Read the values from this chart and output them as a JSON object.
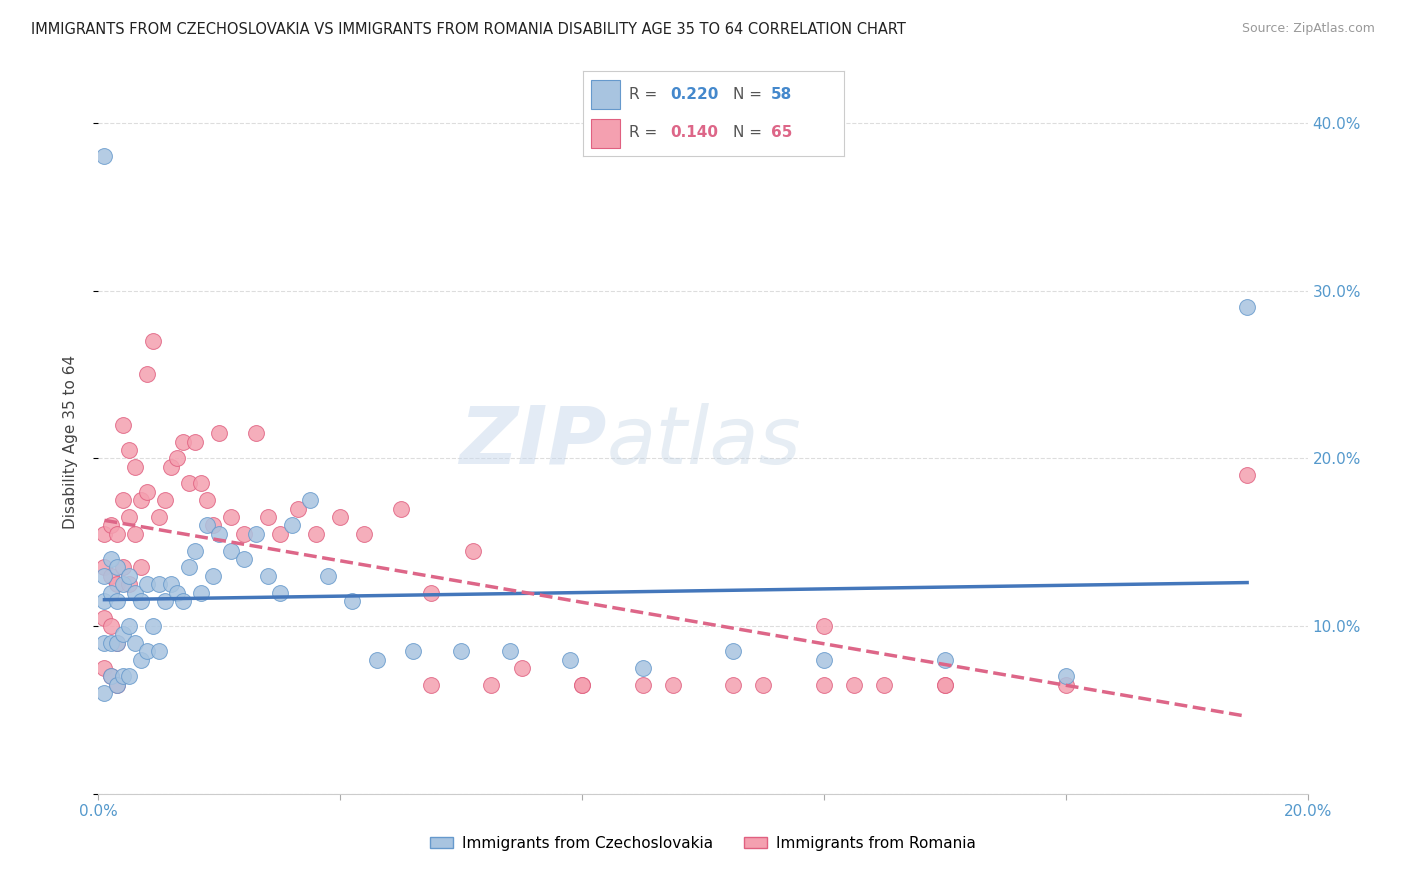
{
  "title": "IMMIGRANTS FROM CZECHOSLOVAKIA VS IMMIGRANTS FROM ROMANIA DISABILITY AGE 35 TO 64 CORRELATION CHART",
  "source": "Source: ZipAtlas.com",
  "ylabel_label": "Disability Age 35 to 64",
  "x_min": 0.0,
  "x_max": 0.2,
  "y_min": 0.0,
  "y_max": 0.42,
  "x_ticks": [
    0.0,
    0.04,
    0.08,
    0.12,
    0.16,
    0.2
  ],
  "x_tick_labels": [
    "0.0%",
    "",
    "",
    "",
    "",
    "20.0%"
  ],
  "y_ticks": [
    0.0,
    0.1,
    0.2,
    0.3,
    0.4
  ],
  "y_tick_labels": [
    "",
    "10.0%",
    "20.0%",
    "30.0%",
    "40.0%"
  ],
  "series1_color": "#a8c4e0",
  "series1_edge": "#6699cc",
  "series2_color": "#f4a0b0",
  "series2_edge": "#e06080",
  "series1_label": "Immigrants from Czechoslovakia",
  "series2_label": "Immigrants from Romania",
  "series1_R": "0.220",
  "series1_N": "58",
  "series2_R": "0.140",
  "series2_N": "65",
  "line1_color": "#4477bb",
  "line2_color": "#dd6688",
  "line2_style": "--",
  "watermark_zip": "ZIP",
  "watermark_atlas": "atlas",
  "background_color": "#ffffff",
  "grid_color": "#dddddd",
  "tick_color": "#5599cc",
  "legend_R_color1": "#4488cc",
  "legend_R_color2": "#dd6688",
  "legend_N_color1": "#4488cc",
  "legend_N_color2": "#dd6688",
  "series1_x": [
    0.001,
    0.001,
    0.001,
    0.001,
    0.001,
    0.002,
    0.002,
    0.002,
    0.002,
    0.003,
    0.003,
    0.003,
    0.003,
    0.004,
    0.004,
    0.004,
    0.005,
    0.005,
    0.005,
    0.006,
    0.006,
    0.007,
    0.007,
    0.008,
    0.008,
    0.009,
    0.01,
    0.01,
    0.011,
    0.012,
    0.013,
    0.014,
    0.015,
    0.016,
    0.017,
    0.018,
    0.019,
    0.02,
    0.022,
    0.024,
    0.026,
    0.028,
    0.03,
    0.032,
    0.035,
    0.038,
    0.042,
    0.046,
    0.052,
    0.06,
    0.068,
    0.078,
    0.09,
    0.105,
    0.12,
    0.14,
    0.16,
    0.19
  ],
  "series1_y": [
    0.38,
    0.13,
    0.115,
    0.09,
    0.06,
    0.14,
    0.12,
    0.09,
    0.07,
    0.135,
    0.115,
    0.09,
    0.065,
    0.125,
    0.095,
    0.07,
    0.13,
    0.1,
    0.07,
    0.12,
    0.09,
    0.115,
    0.08,
    0.125,
    0.085,
    0.1,
    0.125,
    0.085,
    0.115,
    0.125,
    0.12,
    0.115,
    0.135,
    0.145,
    0.12,
    0.16,
    0.13,
    0.155,
    0.145,
    0.14,
    0.155,
    0.13,
    0.12,
    0.16,
    0.175,
    0.13,
    0.115,
    0.08,
    0.085,
    0.085,
    0.085,
    0.08,
    0.075,
    0.085,
    0.08,
    0.08,
    0.07,
    0.29
  ],
  "series2_x": [
    0.001,
    0.001,
    0.001,
    0.001,
    0.002,
    0.002,
    0.002,
    0.002,
    0.003,
    0.003,
    0.003,
    0.003,
    0.004,
    0.004,
    0.004,
    0.005,
    0.005,
    0.005,
    0.006,
    0.006,
    0.007,
    0.007,
    0.008,
    0.008,
    0.009,
    0.01,
    0.011,
    0.012,
    0.013,
    0.014,
    0.015,
    0.016,
    0.017,
    0.018,
    0.019,
    0.02,
    0.022,
    0.024,
    0.026,
    0.028,
    0.03,
    0.033,
    0.036,
    0.04,
    0.044,
    0.05,
    0.055,
    0.062,
    0.07,
    0.08,
    0.09,
    0.105,
    0.12,
    0.14,
    0.16,
    0.12,
    0.13,
    0.055,
    0.065,
    0.08,
    0.095,
    0.11,
    0.125,
    0.14,
    0.19
  ],
  "series2_y": [
    0.155,
    0.135,
    0.105,
    0.075,
    0.16,
    0.13,
    0.1,
    0.07,
    0.155,
    0.125,
    0.09,
    0.065,
    0.22,
    0.175,
    0.135,
    0.205,
    0.165,
    0.125,
    0.195,
    0.155,
    0.175,
    0.135,
    0.25,
    0.18,
    0.27,
    0.165,
    0.175,
    0.195,
    0.2,
    0.21,
    0.185,
    0.21,
    0.185,
    0.175,
    0.16,
    0.215,
    0.165,
    0.155,
    0.215,
    0.165,
    0.155,
    0.17,
    0.155,
    0.165,
    0.155,
    0.17,
    0.12,
    0.145,
    0.075,
    0.065,
    0.065,
    0.065,
    0.065,
    0.065,
    0.065,
    0.1,
    0.065,
    0.065,
    0.065,
    0.065,
    0.065,
    0.065,
    0.065,
    0.065,
    0.19
  ]
}
